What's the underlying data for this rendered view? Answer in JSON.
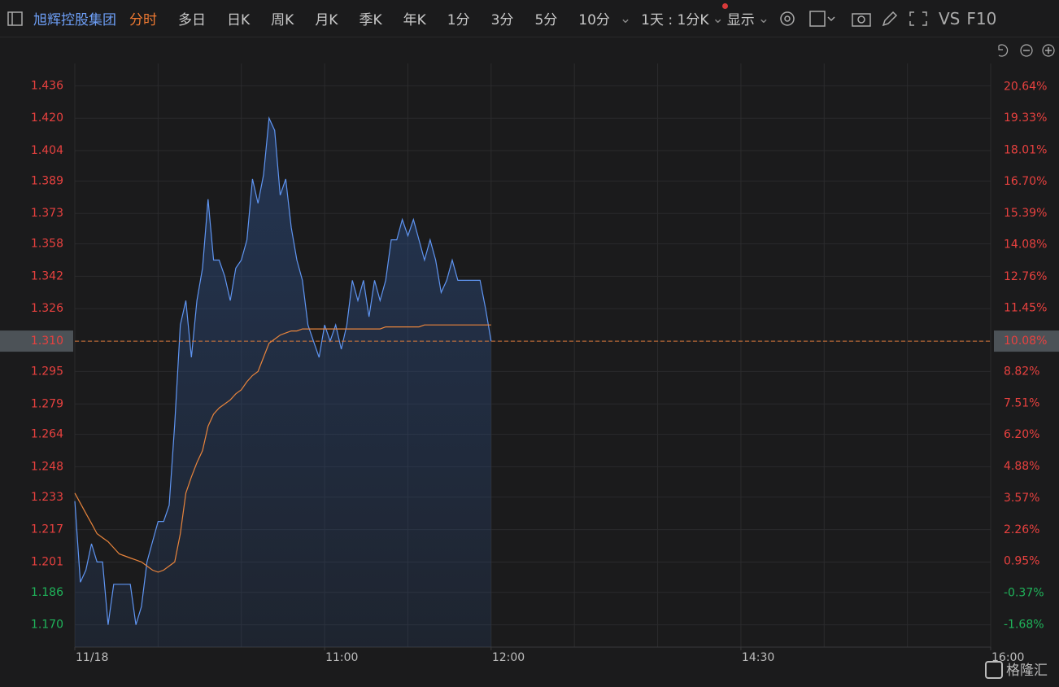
{
  "toolbar": {
    "stock_name": "旭辉控股集团",
    "tabs": [
      "分时",
      "多日",
      "日K",
      "周K",
      "月K",
      "季K",
      "年K",
      "1分",
      "3分",
      "5分",
      "10分"
    ],
    "period": "1天 : 1分K",
    "display": "显示",
    "vs": "VS",
    "f10": "F10"
  },
  "chart_data": {
    "type": "line",
    "x": [
      0,
      2,
      4,
      6,
      8,
      10,
      12,
      14,
      16,
      18,
      20,
      22,
      24,
      26,
      28,
      30,
      32,
      34,
      36,
      38,
      40,
      42,
      44,
      46,
      48,
      50,
      52,
      54,
      56,
      58,
      60,
      62,
      64,
      66,
      68,
      70,
      72,
      74,
      76,
      78,
      80,
      82,
      84,
      86,
      88,
      90,
      92,
      94,
      96,
      98,
      100,
      102,
      104,
      106,
      108,
      110,
      112,
      114,
      116,
      118,
      120,
      122,
      124,
      126,
      128,
      130,
      132,
      134,
      136,
      138,
      140,
      142,
      144,
      146,
      148,
      150
    ],
    "xlim": [
      0,
      330
    ],
    "xticks": [
      {
        "value": 0,
        "label": "11/18"
      },
      {
        "value": 90,
        "label": "11:00"
      },
      {
        "value": 150,
        "label": "12:00"
      },
      {
        "value": 240,
        "label": "14:30"
      },
      {
        "value": 330,
        "label": "16:00"
      }
    ],
    "series": [
      {
        "color": "#5f95f2",
        "fill": true,
        "values": [
          1.231,
          1.191,
          1.197,
          1.21,
          1.201,
          1.201,
          1.17,
          1.19,
          1.19,
          1.19,
          1.19,
          1.17,
          1.179,
          1.201,
          1.211,
          1.221,
          1.221,
          1.229,
          1.269,
          1.318,
          1.33,
          1.302,
          1.33,
          1.346,
          1.38,
          1.35,
          1.35,
          1.342,
          1.33,
          1.346,
          1.35,
          1.36,
          1.39,
          1.378,
          1.392,
          1.42,
          1.414,
          1.382,
          1.39,
          1.366,
          1.35,
          1.34,
          1.318,
          1.31,
          1.302,
          1.318,
          1.31,
          1.318,
          1.306,
          1.318,
          1.34,
          1.33,
          1.34,
          1.322,
          1.34,
          1.33,
          1.34,
          1.36,
          1.36,
          1.37,
          1.362,
          1.37,
          1.36,
          1.35,
          1.36,
          1.35,
          1.334,
          1.34,
          1.35,
          1.34,
          1.34,
          1.34,
          1.34,
          1.34,
          1.326,
          1.31
        ]
      },
      {
        "color": "#e8843c",
        "fill": false,
        "values": [
          1.235,
          1.23,
          1.225,
          1.22,
          1.215,
          1.213,
          1.211,
          1.208,
          1.205,
          1.204,
          1.203,
          1.202,
          1.201,
          1.199,
          1.197,
          1.196,
          1.197,
          1.199,
          1.201,
          1.215,
          1.235,
          1.243,
          1.25,
          1.256,
          1.268,
          1.274,
          1.277,
          1.279,
          1.281,
          1.284,
          1.286,
          1.29,
          1.293,
          1.295,
          1.302,
          1.309,
          1.311,
          1.313,
          1.314,
          1.315,
          1.315,
          1.316,
          1.316,
          1.316,
          1.316,
          1.316,
          1.316,
          1.316,
          1.316,
          1.316,
          1.316,
          1.316,
          1.316,
          1.316,
          1.316,
          1.316,
          1.317,
          1.317,
          1.317,
          1.317,
          1.317,
          1.317,
          1.317,
          1.318,
          1.318,
          1.318,
          1.318,
          1.318,
          1.318,
          1.318,
          1.318,
          1.318,
          1.318,
          1.318,
          1.318,
          1.318
        ]
      }
    ],
    "ylim": [
      1.159,
      1.447
    ],
    "yticks": [
      {
        "value": 1.436,
        "label": "1.436"
      },
      {
        "value": 1.42,
        "label": "1.420"
      },
      {
        "value": 1.404,
        "label": "1.404"
      },
      {
        "value": 1.389,
        "label": "1.389"
      },
      {
        "value": 1.373,
        "label": "1.373"
      },
      {
        "value": 1.358,
        "label": "1.358"
      },
      {
        "value": 1.342,
        "label": "1.342"
      },
      {
        "value": 1.326,
        "label": "1.326"
      },
      {
        "value": 1.31,
        "label": "1.310"
      },
      {
        "value": 1.295,
        "label": "1.295"
      },
      {
        "value": 1.279,
        "label": "1.279"
      },
      {
        "value": 1.264,
        "label": "1.264"
      },
      {
        "value": 1.248,
        "label": "1.248"
      },
      {
        "value": 1.233,
        "label": "1.233"
      },
      {
        "value": 1.217,
        "label": "1.217"
      },
      {
        "value": 1.201,
        "label": "1.201"
      },
      {
        "value": 1.186,
        "label": "1.186"
      },
      {
        "value": 1.17,
        "label": "1.170"
      }
    ],
    "y2lim": [
      -2.61,
      21.6
    ],
    "y2ticks": [
      {
        "value": 20.64,
        "label": "20.64%"
      },
      {
        "value": 19.33,
        "label": "19.33%"
      },
      {
        "value": 18.01,
        "label": "18.01%"
      },
      {
        "value": 16.7,
        "label": "16.70%"
      },
      {
        "value": 15.39,
        "label": "15.39%"
      },
      {
        "value": 14.08,
        "label": "14.08%"
      },
      {
        "value": 12.76,
        "label": "12.76%"
      },
      {
        "value": 11.45,
        "label": "11.45%"
      },
      {
        "value": 10.08,
        "label": "10.08%"
      },
      {
        "value": 8.82,
        "label": "8.82%"
      },
      {
        "value": 7.51,
        "label": "7.51%"
      },
      {
        "value": 6.2,
        "label": "6.20%"
      },
      {
        "value": 4.88,
        "label": "4.88%"
      },
      {
        "value": 3.57,
        "label": "3.57%"
      },
      {
        "value": 2.26,
        "label": "2.26%"
      },
      {
        "value": 0.95,
        "label": "0.95%"
      },
      {
        "value": -0.37,
        "label": "-0.37%"
      },
      {
        "value": -1.68,
        "label": "-1.68%"
      }
    ],
    "last_price": 1.31,
    "up_color": "#e8413f",
    "down_color": "#1fb45a",
    "grid": true
  },
  "watermark": "格隆汇"
}
